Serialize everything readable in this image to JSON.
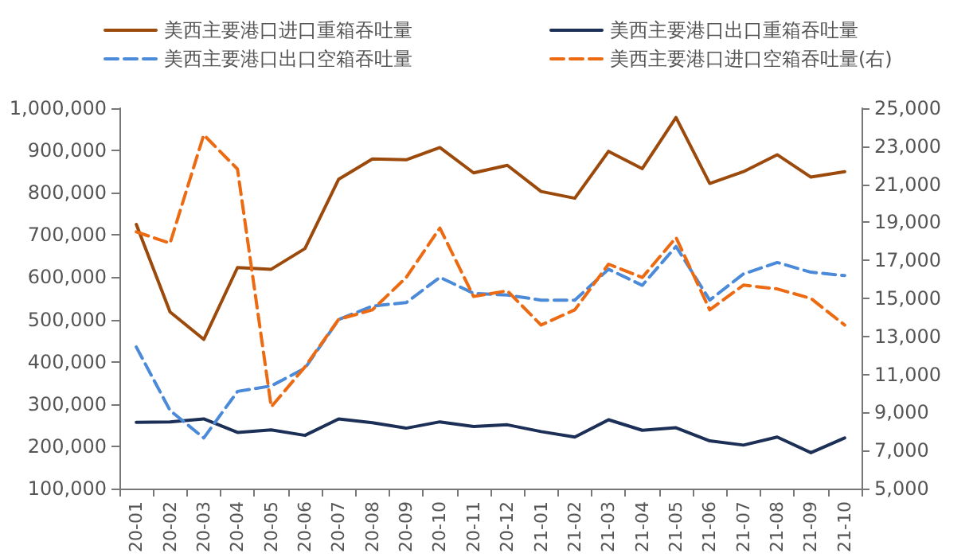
{
  "chart_data": {
    "type": "line",
    "categories": [
      "20-01",
      "20-02",
      "20-03",
      "20-04",
      "20-05",
      "20-06",
      "20-07",
      "20-08",
      "20-09",
      "20-10",
      "20-11",
      "20-12",
      "21-01",
      "21-02",
      "21-03",
      "21-04",
      "21-05",
      "21-06",
      "21-07",
      "21-08",
      "21-09",
      "21-10"
    ],
    "series": [
      {
        "name": "美西主要港口进口重箱吞吐量",
        "color": "#9c4a0c",
        "line_style": "solid",
        "values": [
          725000,
          518000,
          453000,
          623000,
          619000,
          668000,
          832000,
          880000,
          878000,
          907000,
          847000,
          865000,
          803000,
          787000,
          898000,
          857000,
          978000,
          822000,
          850000,
          890000,
          837000,
          850000
        ]
      },
      {
        "name": "美西主要港口出口重箱吞吐量",
        "color": "#1b2f57",
        "line_style": "solid",
        "values": [
          257000,
          258000,
          265000,
          233000,
          239000,
          226000,
          265000,
          256000,
          243000,
          258000,
          247000,
          251000,
          235000,
          222000,
          263000,
          238000,
          244000,
          213000,
          203000,
          222000,
          185000,
          220000
        ]
      },
      {
        "name": "美西主要港口出口空箱吞吐量",
        "color": "#4a8ad8",
        "line_style": "dashed",
        "values": [
          435000,
          285000,
          220000,
          330000,
          343000,
          385000,
          500000,
          532000,
          540000,
          600000,
          562000,
          558000,
          546000,
          546000,
          619000,
          581000,
          673000,
          546000,
          608000,
          635000,
          612000,
          604000
        ]
      },
      {
        "name": "美西主要港口进口空箱吞吐量(右)",
        "color": "#ec6a12",
        "line_style": "dashed",
        "axis": "y2",
        "values": [
          18500,
          17900,
          23600,
          21800,
          9300,
          11400,
          13900,
          14400,
          16100,
          18700,
          15100,
          15400,
          13600,
          14400,
          16800,
          16100,
          18200,
          14400,
          15700,
          15500,
          15000,
          13600
        ]
      }
    ],
    "ylim": [
      100000,
      1000000
    ],
    "yticks": [
      {
        "value": 100000,
        "label": "100,000"
      },
      {
        "value": 200000,
        "label": "200,000"
      },
      {
        "value": 300000,
        "label": "300,000"
      },
      {
        "value": 400000,
        "label": "400,000"
      },
      {
        "value": 500000,
        "label": "500,000"
      },
      {
        "value": 600000,
        "label": "600,000"
      },
      {
        "value": 700000,
        "label": "700,000"
      },
      {
        "value": 800000,
        "label": "800,000"
      },
      {
        "value": 900000,
        "label": "900,000"
      },
      {
        "value": 1000000,
        "label": "1,000,000"
      }
    ],
    "y2lim": [
      5000,
      25000
    ],
    "y2ticks": [
      {
        "value": 5000,
        "label": "5,000"
      },
      {
        "value": 7000,
        "label": "7,000"
      },
      {
        "value": 9000,
        "label": "9,000"
      },
      {
        "value": 11000,
        "label": "11,000"
      },
      {
        "value": 13000,
        "label": "13,000"
      },
      {
        "value": 15000,
        "label": "15,000"
      },
      {
        "value": 17000,
        "label": "17,000"
      },
      {
        "value": 19000,
        "label": "19,000"
      },
      {
        "value": 21000,
        "label": "21,000"
      },
      {
        "value": 23000,
        "label": "23,000"
      },
      {
        "value": 25000,
        "label": "25,000"
      }
    ],
    "grid": false,
    "legend": "top",
    "marker": "none"
  }
}
